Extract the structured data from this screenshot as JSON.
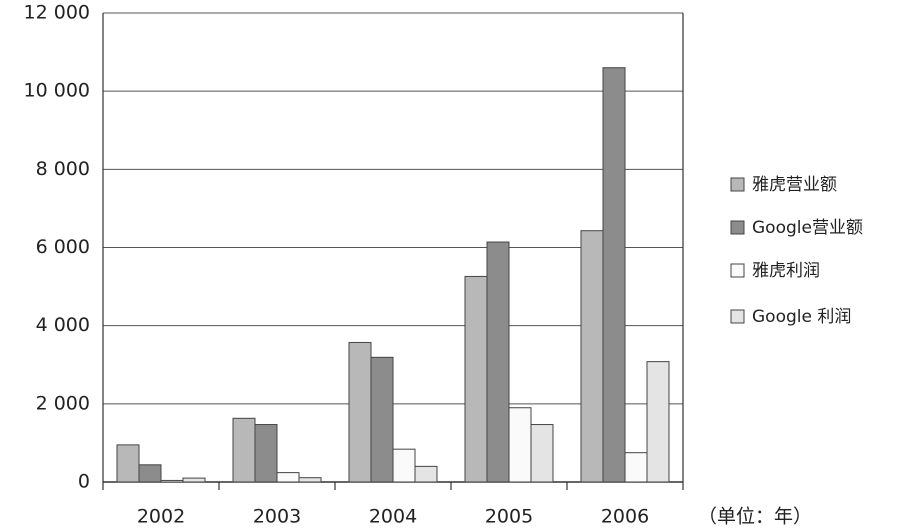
{
  "chart_data": {
    "type": "bar",
    "categories": [
      "2002",
      "2003",
      "2004",
      "2005",
      "2006"
    ],
    "series": [
      {
        "name": "雅虎营业额",
        "color": "#b8b8b8",
        "values": [
          950,
          1630,
          3570,
          5260,
          6430
        ]
      },
      {
        "name": "Google营业额",
        "color": "#8c8c8c",
        "values": [
          440,
          1470,
          3190,
          6140,
          10600
        ]
      },
      {
        "name": "雅虎利润",
        "color": "#fafafa",
        "values": [
          40,
          240,
          840,
          1900,
          750
        ]
      },
      {
        "name": "Google 利润",
        "color": "#e4e4e4",
        "values": [
          100,
          110,
          400,
          1470,
          3080
        ]
      }
    ],
    "ylim": [
      0,
      12000
    ],
    "yticks": [
      0,
      {
        "value": 2000,
        "label": "2 000"
      },
      {
        "value": 4000,
        "label": "4 000"
      },
      {
        "value": 6000,
        "label": "6 000"
      },
      {
        "value": 8000,
        "label": "8 000"
      },
      {
        "value": 10000,
        "label": "10 000"
      },
      {
        "value": 12000,
        "label": "12 000"
      }
    ],
    "grid": true,
    "unit_label": "（单位：年）"
  }
}
